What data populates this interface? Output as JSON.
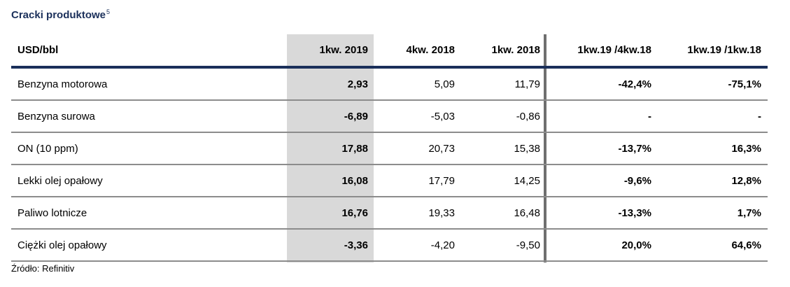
{
  "title": {
    "text": "Cracki produktowe",
    "footnote": "5"
  },
  "table": {
    "headers": [
      "USD/bbl",
      "1kw. 2019",
      "4kw. 2018",
      "1kw. 2018",
      "1kw.19 /4kw.18",
      "1kw.19 /1kw.18"
    ],
    "rows": [
      {
        "label": "Benzyna motorowa",
        "q1_2019": "2,93",
        "q4_2018": "5,09",
        "q1_2018": "11,79",
        "chg_q4": "-42,4%",
        "chg_q1": "-75,1%"
      },
      {
        "label": "Benzyna surowa",
        "q1_2019": "-6,89",
        "q4_2018": "-5,03",
        "q1_2018": "-0,86",
        "chg_q4": "-",
        "chg_q1": "-"
      },
      {
        "label": "ON (10 ppm)",
        "q1_2019": "17,88",
        "q4_2018": "20,73",
        "q1_2018": "15,38",
        "chg_q4": "-13,7%",
        "chg_q1": "16,3%"
      },
      {
        "label": "Lekki olej opałowy",
        "q1_2019": "16,08",
        "q4_2018": "17,79",
        "q1_2018": "14,25",
        "chg_q4": "-9,6%",
        "chg_q1": "12,8%"
      },
      {
        "label": "Paliwo lotnicze",
        "q1_2019": "16,76",
        "q4_2018": "19,33",
        "q1_2018": "16,48",
        "chg_q4": "-13,3%",
        "chg_q1": "1,7%"
      },
      {
        "label": "Ciężki olej opałowy",
        "q1_2019": "-3,36",
        "q4_2018": "-4,20",
        "q1_2018": "-9,50",
        "chg_q4": "20,0%",
        "chg_q1": "64,6%"
      }
    ]
  },
  "source": "Źródło: Refinitiv",
  "colors": {
    "title": "#1a2f5a",
    "header_line": "#1a2f5a",
    "highlight_column": "#d9d9d9",
    "row_separator": "#8c8c8c",
    "column_separator": "#6f6f6f"
  }
}
